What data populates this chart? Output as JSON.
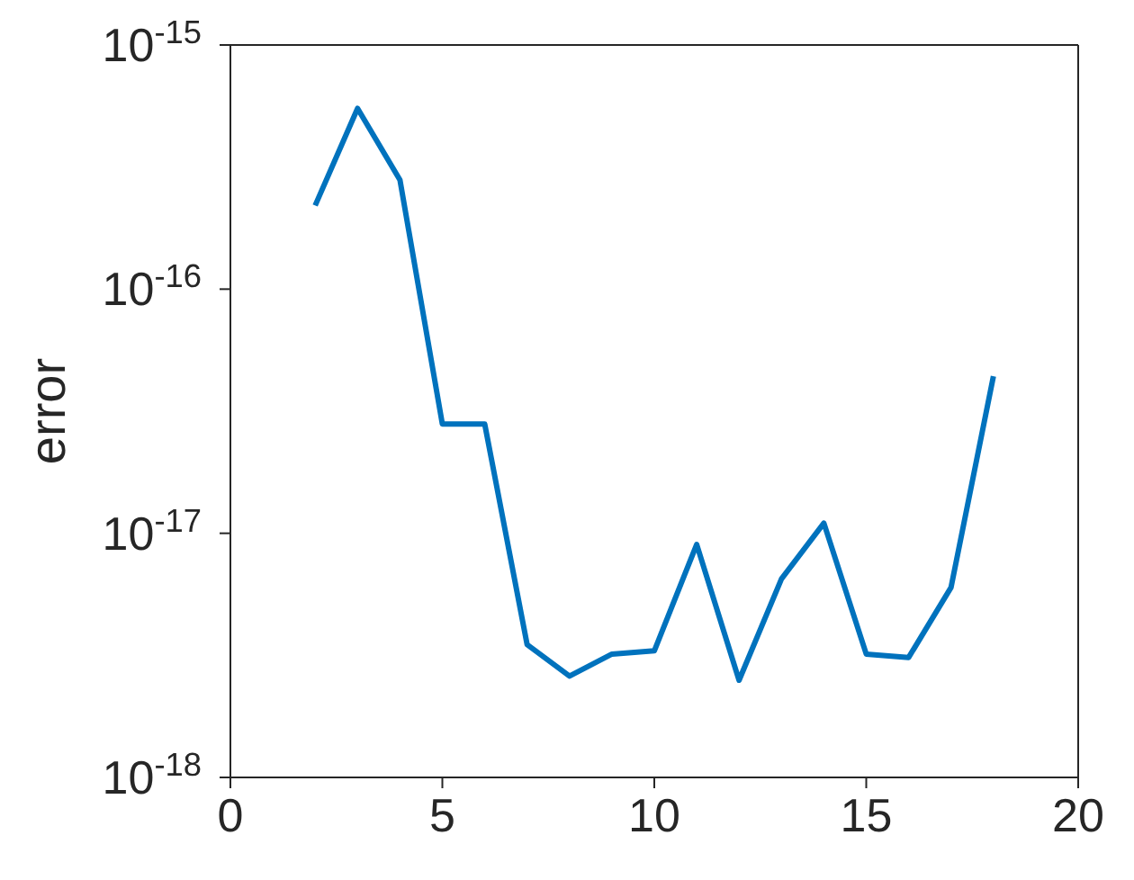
{
  "chart_data": {
    "type": "line",
    "ylabel": "error",
    "log": "y",
    "grid": false,
    "marker": "none",
    "line_style": "solid",
    "x": [
      2,
      3,
      4,
      5,
      6,
      7,
      8,
      9,
      10,
      11,
      12,
      13,
      14,
      15,
      16,
      17,
      18
    ],
    "series": [
      {
        "color": "#0072bd",
        "values": [
          2.2e-16,
          5.5e-16,
          2.8e-16,
          2.8e-17,
          2.8e-17,
          3.5e-18,
          2.6e-18,
          3.2e-18,
          3.3e-18,
          9e-18,
          2.5e-18,
          6.5e-18,
          1.1e-17,
          3.2e-18,
          3.1e-18,
          6e-18,
          4.4e-17
        ]
      }
    ],
    "xlim": [
      0,
      20
    ],
    "xticks": [
      0,
      5,
      10,
      15,
      20
    ],
    "ylim": [
      1e-18,
      1e-15
    ],
    "yticks": [
      {
        "value": 1e-18,
        "label": "10$^{-18}$"
      },
      {
        "value": 1e-17,
        "label": "10$^{-17}$"
      },
      {
        "value": 1e-16,
        "label": "10$^{-16}$"
      },
      {
        "value": 1e-15,
        "label": "10$^{-15}$"
      }
    ]
  }
}
